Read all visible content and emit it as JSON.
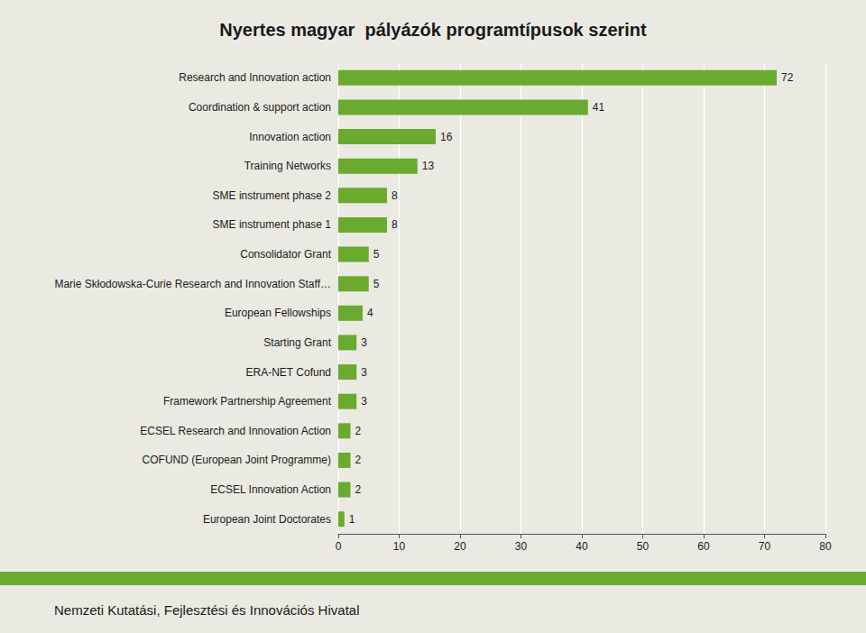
{
  "chart_data": {
    "type": "bar",
    "title": "Nyertes magyar  pályázók programtípusok szerint",
    "orientation": "horizontal",
    "categories": [
      "European Joint Doctorates",
      "ECSEL Innovation Action",
      "COFUND (European Joint Programme)",
      "ECSEL Research and Innovation Action",
      "Framework Partnership Agreement",
      "ERA-NET Cofund",
      "Starting Grant",
      "European Fellowships",
      "Marie Skłodowska-Curie Research and Innovation Staff…",
      "Consolidator Grant",
      "SME instrument phase 1",
      "SME instrument phase 2",
      "Training Networks",
      "Innovation action",
      "Coordination & support action",
      "Research and Innovation action"
    ],
    "values": [
      1,
      2,
      2,
      2,
      3,
      3,
      3,
      4,
      5,
      5,
      8,
      8,
      13,
      16,
      41,
      72
    ],
    "color": "#6aaa2e",
    "xlim": [
      0,
      80
    ],
    "xticks": [
      0,
      10,
      20,
      30,
      40,
      50,
      60,
      70,
      80
    ],
    "grid": true,
    "data_labels": true,
    "annotations": [
      "Nemzeti Kutatási, Fejlesztési és Innovációs Hivatal"
    ]
  }
}
